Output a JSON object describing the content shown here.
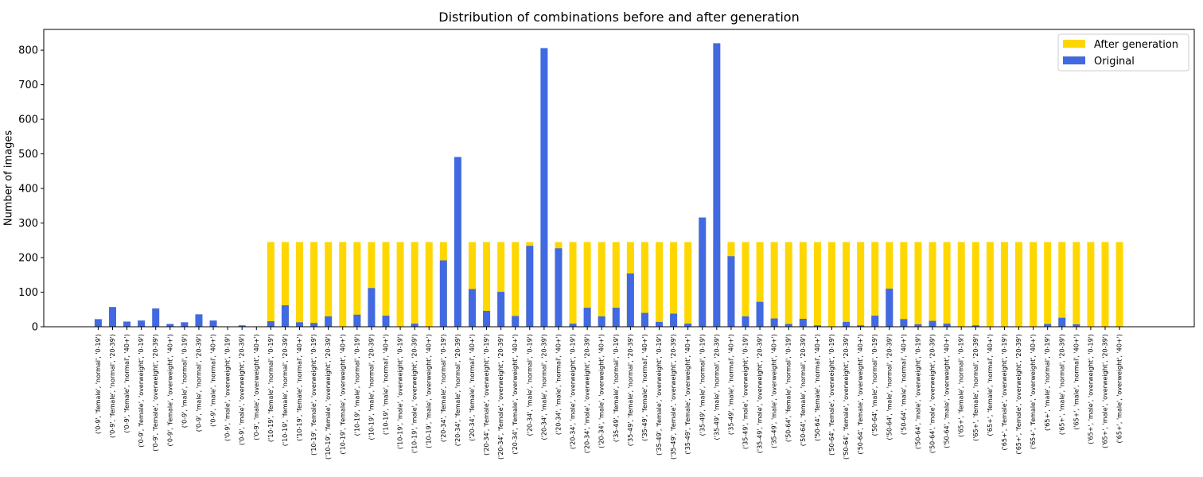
{
  "chart_data": {
    "type": "bar",
    "title": "Distribution of combinations before and after generation",
    "xlabel": "",
    "ylabel": "Number of images",
    "ylim": [
      0,
      860
    ],
    "yticks": [
      0,
      100,
      200,
      300,
      400,
      500,
      600,
      700,
      800
    ],
    "legend_position": "top-right",
    "categories": [
      "('0-9', 'female', 'normal', '0-19')",
      "('0-9', 'female', 'normal', '20-39')",
      "('0-9', 'female', 'normal', '40+')",
      "('0-9', 'female', 'overweight', '0-19')",
      "('0-9', 'female', 'overweight', '20-39')",
      "('0-9', 'female', 'overweight', '40+')",
      "('0-9', 'male', 'normal', '0-19')",
      "('0-9', 'male', 'normal', '20-39')",
      "('0-9', 'male', 'normal', '40+')",
      "('0-9', 'male', 'overweight', '0-19')",
      "('0-9', 'male', 'overweight', '20-39')",
      "('0-9', 'male', 'overweight', '40+')",
      "('10-19', 'female', 'normal', '0-19')",
      "('10-19', 'female', 'normal', '20-39')",
      "('10-19', 'female', 'normal', '40+')",
      "('10-19', 'female', 'overweight', '0-19')",
      "('10-19', 'female', 'overweight', '20-39')",
      "('10-19', 'female', 'overweight', '40+')",
      "('10-19', 'male', 'normal', '0-19')",
      "('10-19', 'male', 'normal', '20-39')",
      "('10-19', 'male', 'normal', '40+')",
      "('10-19', 'male', 'overweight', '0-19')",
      "('10-19', 'male', 'overweight', '20-39')",
      "('10-19', 'male', 'overweight', '40+')",
      "('20-34', 'female', 'normal', '0-19')",
      "('20-34', 'female', 'normal', '20-39')",
      "('20-34', 'female', 'normal', '40+')",
      "('20-34', 'female', 'overweight', '0-19')",
      "('20-34', 'female', 'overweight', '20-39')",
      "('20-34', 'female', 'overweight', '40+')",
      "('20-34', 'male', 'normal', '0-19')",
      "('20-34', 'male', 'normal', '20-39')",
      "('20-34', 'male', 'normal', '40+')",
      "('20-34', 'male', 'overweight', '0-19')",
      "('20-34', 'male', 'overweight', '20-39')",
      "('20-34', 'male', 'overweight', '40+')",
      "('35-49', 'female', 'normal', '0-19')",
      "('35-49', 'female', 'normal', '20-39')",
      "('35-49', 'female', 'normal', '40+')",
      "('35-49', 'female', 'overweight', '0-19')",
      "('35-49', 'female', 'overweight', '20-39')",
      "('35-49', 'female', 'overweight', '40+')",
      "('35-49', 'male', 'normal', '0-19')",
      "('35-49', 'male', 'normal', '20-39')",
      "('35-49', 'male', 'normal', '40+')",
      "('35-49', 'male', 'overweight', '0-19')",
      "('35-49', 'male', 'overweight', '20-39')",
      "('35-49', 'male', 'overweight', '40+')",
      "('50-64', 'female', 'normal', '0-19')",
      "('50-64', 'female', 'normal', '20-39')",
      "('50-64', 'female', 'normal', '40+')",
      "('50-64', 'female', 'overweight', '0-19')",
      "('50-64', 'female', 'overweight', '20-39')",
      "('50-64', 'female', 'overweight', '40+')",
      "('50-64', 'male', 'normal', '0-19')",
      "('50-64', 'male', 'normal', '20-39')",
      "('50-64', 'male', 'normal', '40+')",
      "('50-64', 'male', 'overweight', '0-19')",
      "('50-64', 'male', 'overweight', '20-39')",
      "('50-64', 'male', 'overweight', '40+')",
      "('65+', 'female', 'normal', '0-19')",
      "('65+', 'female', 'normal', '20-39')",
      "('65+', 'female', 'normal', '40+')",
      "('65+', 'female', 'overweight', '0-19')",
      "('65+', 'female', 'overweight', '20-39')",
      "('65+', 'female', 'overweight', '40+')",
      "('65+', 'male', 'normal', '0-19')",
      "('65+', 'male', 'normal', '20-39')",
      "('65+', 'male', 'normal', '40+')",
      "('65+', 'male', 'overweight', '0-19')",
      "('65+', 'male', 'overweight', '20-39')",
      "('65+', 'male', 'overweight', '40+')"
    ],
    "series": [
      {
        "name": "After generation",
        "color": "#ffd700",
        "values": [
          0,
          0,
          0,
          0,
          0,
          0,
          0,
          0,
          0,
          0,
          0,
          0,
          245,
          245,
          245,
          245,
          245,
          245,
          245,
          245,
          245,
          245,
          245,
          245,
          245,
          245,
          245,
          245,
          245,
          245,
          245,
          245,
          245,
          245,
          245,
          245,
          245,
          245,
          245,
          245,
          245,
          245,
          245,
          245,
          245,
          245,
          245,
          245,
          245,
          245,
          245,
          245,
          245,
          245,
          245,
          245,
          245,
          245,
          245,
          245,
          245,
          245,
          245,
          245,
          245,
          245,
          245,
          245,
          245,
          245,
          245,
          245
        ]
      },
      {
        "name": "Original",
        "color": "#4169e1",
        "values": [
          22,
          57,
          15,
          18,
          53,
          8,
          13,
          36,
          18,
          1,
          4,
          1,
          16,
          62,
          13,
          11,
          30,
          1,
          35,
          112,
          32,
          1,
          9,
          1,
          192,
          491,
          109,
          46,
          101,
          31,
          234,
          806,
          227,
          9,
          55,
          30,
          55,
          154,
          40,
          14,
          38,
          9,
          316,
          820,
          204,
          30,
          72,
          24,
          8,
          23,
          4,
          1,
          14,
          4,
          32,
          110,
          22,
          7,
          17,
          9,
          1,
          4,
          1,
          1,
          1,
          1,
          8,
          26,
          7,
          1,
          1,
          1
        ]
      }
    ]
  }
}
